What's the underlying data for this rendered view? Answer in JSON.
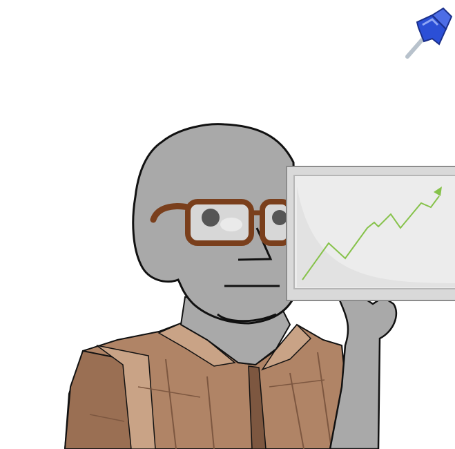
{
  "scene": {
    "kind": "illustration",
    "subject": "wojak-with-glasses-holding-chart",
    "colors": {
      "background": "#ffffff",
      "skin": "#a9a9a9",
      "skin_shadow": "#8f8f8f",
      "outline": "#111111",
      "glasses": "#7a3f1c",
      "lens": "#cfcfcf",
      "iris": "#555555",
      "jacket": "#b08466",
      "jacket_dark": "#7d5740",
      "jacket_light": "#c9a386",
      "board_frame": "#d9d9d9",
      "board_face": "#ececec",
      "trend_line": "#86c24a",
      "pin_head": "#2b4fd6",
      "pin_head_light": "#6f8cf0",
      "pin_needle": "#b8c2cc"
    },
    "icons": {
      "pin": "pushpin-icon",
      "trend": "upward-trend-arrow-icon"
    }
  }
}
